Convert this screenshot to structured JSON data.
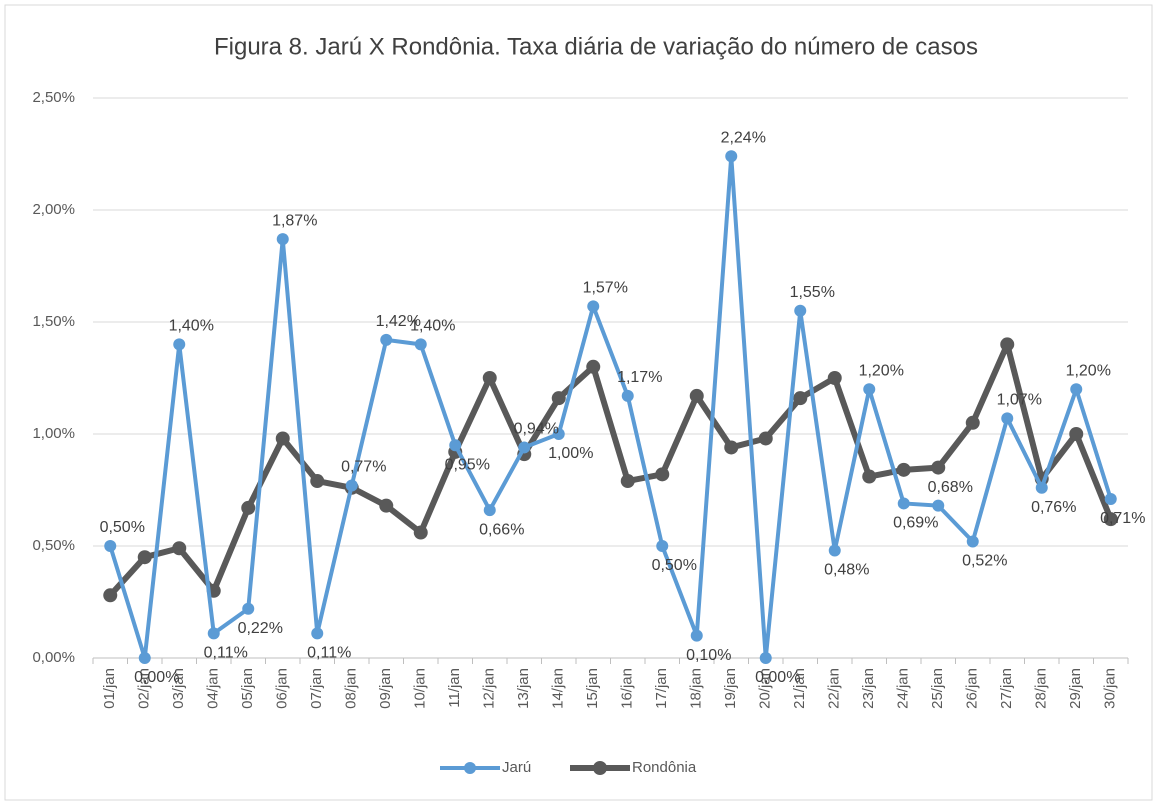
{
  "chart_data": {
    "type": "line",
    "title": "Figura 8. Jarú X Rondônia. Taxa diária de variação do número de casos",
    "categories": [
      "01/jan",
      "02/jan",
      "03/jan",
      "04/jan",
      "05/jan",
      "06/jan",
      "07/jan",
      "08/jan",
      "09/jan",
      "10/jan",
      "11/jan",
      "12/jan",
      "13/jan",
      "14/jan",
      "15/jan",
      "16/jan",
      "17/jan",
      "18/jan",
      "19/jan",
      "20/jan",
      "21/jan",
      "22/jan",
      "23/jan",
      "24/jan",
      "25/jan",
      "26/jan",
      "27/jan",
      "28/jan",
      "29/jan",
      "30/jan"
    ],
    "series": [
      {
        "name": "Jarú",
        "color": "#5b9bd5",
        "values": [
          0.5,
          0.0,
          1.4,
          0.11,
          0.22,
          1.87,
          0.11,
          0.77,
          1.42,
          1.4,
          0.95,
          0.66,
          0.94,
          1.0,
          1.57,
          1.17,
          0.5,
          0.1,
          2.24,
          0.0,
          1.55,
          0.48,
          1.2,
          0.69,
          0.68,
          0.52,
          1.07,
          0.76,
          1.2,
          0.71
        ],
        "value_labels": [
          "0,50%",
          "0,00%",
          "1,40%",
          "0,11%",
          "0,22%",
          "1,87%",
          "0,11%",
          "0,77%",
          "1,42%",
          "1,40%",
          "0,95%",
          "0,66%",
          "0,94%",
          "1,00%",
          "1,57%",
          "1,17%",
          "0,50%",
          "0,10%",
          "2,24%",
          "0,00%",
          "1,55%",
          "0,48%",
          "1,20%",
          "0,69%",
          "0,68%",
          "0,52%",
          "1,07%",
          "0,76%",
          "1,20%",
          "0,71%"
        ]
      },
      {
        "name": "Rondônia",
        "color": "#595959",
        "values": [
          0.28,
          0.45,
          0.49,
          0.3,
          0.67,
          0.98,
          0.79,
          0.76,
          0.68,
          0.56,
          0.92,
          1.25,
          0.91,
          1.16,
          1.3,
          0.79,
          0.82,
          1.17,
          0.94,
          0.98,
          1.16,
          1.25,
          0.81,
          0.84,
          0.85,
          1.05,
          1.4,
          0.8,
          1.0,
          0.62
        ]
      }
    ],
    "ylim": [
      0,
      2.5
    ],
    "yticks": [
      {
        "value": 0,
        "label": "0,00%"
      },
      {
        "value": 0.5,
        "label": "0,50%"
      },
      {
        "value": 1,
        "label": "1,00%"
      },
      {
        "value": 1.5,
        "label": "1,50%"
      },
      {
        "value": 2,
        "label": "2,00%"
      },
      {
        "value": 2.5,
        "label": "2,50%"
      }
    ],
    "grid": true,
    "legend": "bottom"
  }
}
